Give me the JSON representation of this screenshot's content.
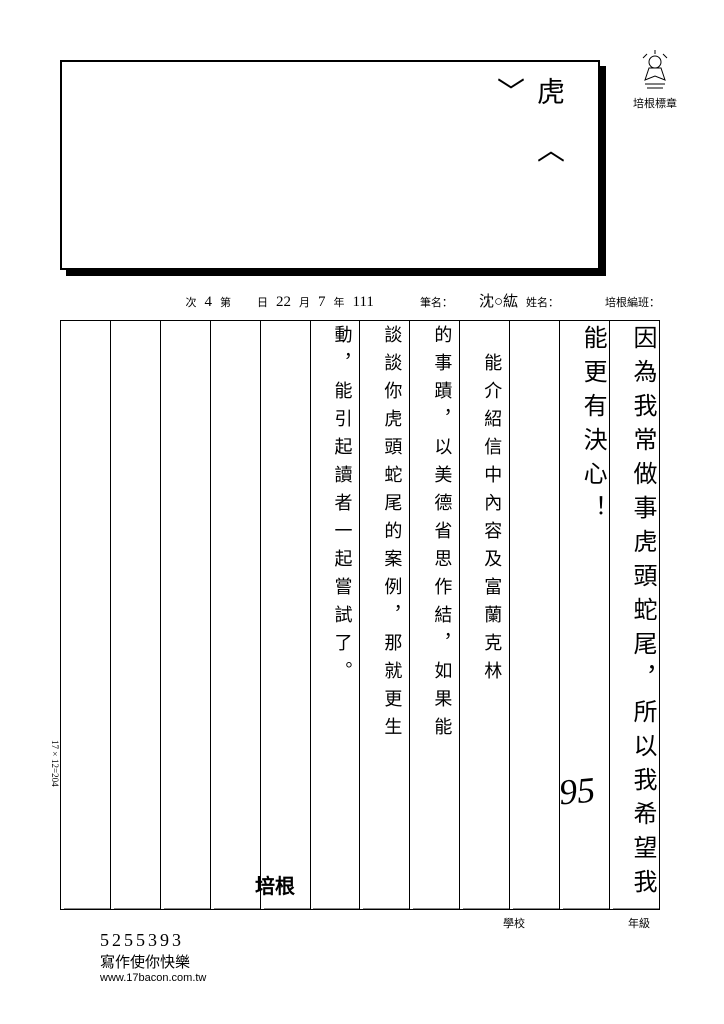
{
  "badge": {
    "label": "培根標章"
  },
  "title_box": {
    "text": "虎〈  〉"
  },
  "info": {
    "class_label": "培根編班：",
    "name_label": "姓名：",
    "name_value": "沈○紘",
    "penname_label": "筆名：",
    "date_year": "111",
    "date_year_suffix": "年",
    "date_month": "7",
    "date_month_suffix": "月",
    "date_day": "22",
    "date_day_suffix": "日",
    "session_prefix": "第",
    "session_num": "4",
    "session_suffix": "次"
  },
  "columns": [
    "因為我常做事虎頭蛇尾，所以我希望我",
    "能更有決心！",
    "",
    "　能介紹信中內容及富蘭克林",
    "的事蹟，以美德省思作結，如果能",
    "談談你虎頭蛇尾的案例，那就更生",
    "動，能引起讀者一起嘗試了。",
    "",
    "",
    "",
    "",
    ""
  ],
  "score": "95",
  "stamp": "培根",
  "grid_dims": "17×12=204",
  "footer": {
    "school_label": "學校",
    "grade_label": "年級",
    "number": "5255393",
    "slogan": "寫作使你快樂",
    "url": "www.17bacon.com.tw"
  },
  "style": {
    "rows": 17,
    "cols": 12,
    "ink_color": "#000000",
    "paper_color": "#ffffff",
    "grid_line_color": "#000000",
    "cell_line_color": "#888888"
  }
}
